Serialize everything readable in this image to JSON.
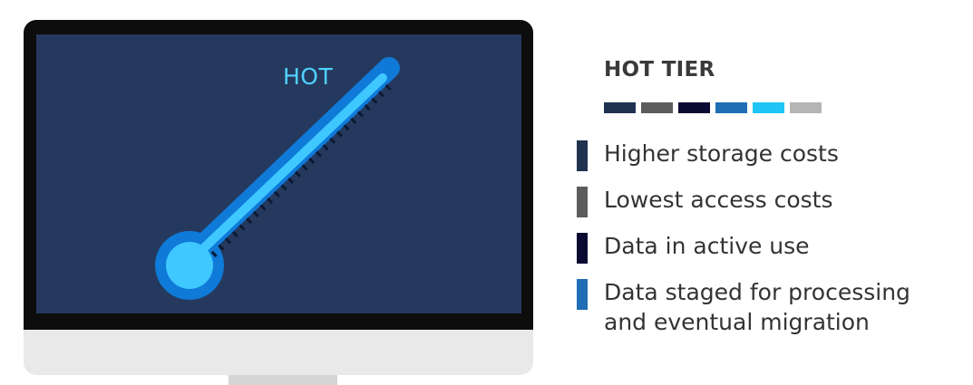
{
  "hot_label": "HOT",
  "tier": {
    "title": "HOT TIER",
    "swatches": [
      "#1f3350",
      "#5c5c5c",
      "#0b0a33",
      "#1f6db5",
      "#1ec5f5",
      "#b5b5b5"
    ]
  },
  "features": [
    {
      "text": "Higher storage costs",
      "color": "#1f3350"
    },
    {
      "text": "Lowest access costs",
      "color": "#5c5c5c"
    },
    {
      "text": "Data in active use",
      "color": "#0b0a33"
    },
    {
      "text": "Data staged for processing\nand eventual migration",
      "color": "#1f6db5"
    }
  ],
  "colors": {
    "screen": "#25395e",
    "thermometer_outer": "#0f7ad8",
    "thermometer_inner": "#3ec8ff",
    "ticks": "#0c1a33"
  }
}
